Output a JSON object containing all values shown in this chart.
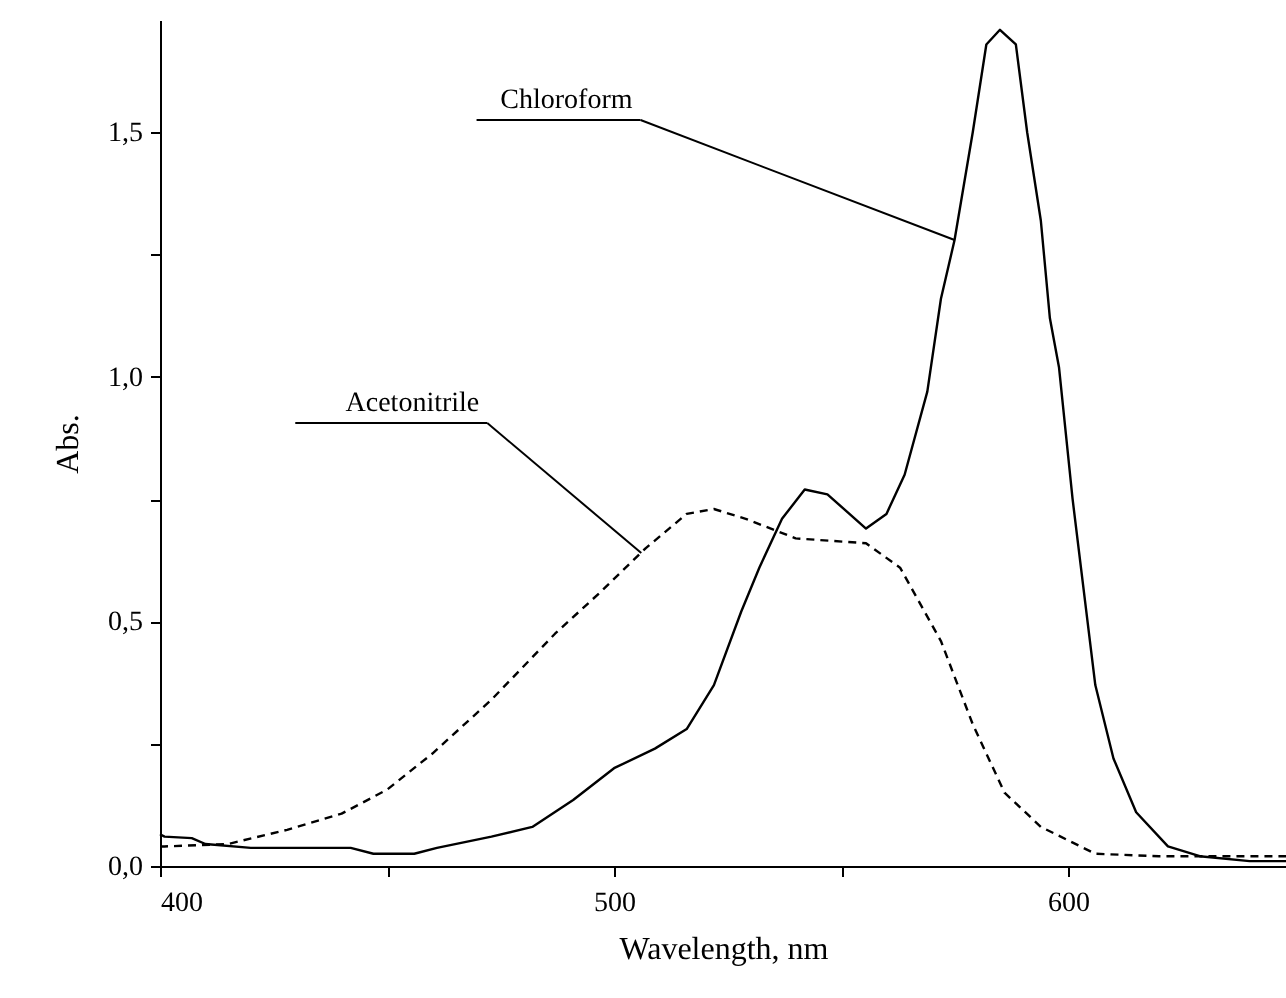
{
  "chart_data": {
    "type": "line",
    "xlabel": "Wavelength, nm",
    "ylabel": "Abs.",
    "xlim": [
      400,
      648
    ],
    "xticks": [
      400,
      {
        "value": 450,
        "label": null
      },
      500,
      {
        "value": 550,
        "label": null
      },
      600
    ],
    "ylim": [
      0,
      1.73
    ],
    "yticks": [
      {
        "value": 0,
        "label": "0,0"
      },
      {
        "value": 0.25,
        "label": null
      },
      {
        "value": 0.5,
        "label": "0,5"
      },
      {
        "value": 0.75,
        "label": null
      },
      {
        "value": 1,
        "label": "1,0"
      },
      {
        "value": 1.25,
        "label": null
      },
      {
        "value": 1.5,
        "label": "1,5"
      }
    ],
    "annotations": [
      {
        "text": "Chloroform",
        "x": 575,
        "y": 1.28
      },
      {
        "text": "Acetonitrile",
        "x": 506,
        "y": 0.64
      }
    ],
    "series": [
      {
        "color": "#000000",
        "line_style": "solid",
        "x": [
          400,
          401,
          407,
          410,
          420,
          442,
          447,
          456,
          461,
          473,
          482,
          491,
          500,
          509,
          516,
          522,
          528,
          532,
          537,
          542,
          547,
          555.5,
          560,
          564,
          569,
          572,
          575,
          579,
          582,
          585,
          588.5,
          591,
          594,
          596,
          598,
          601,
          606,
          610,
          615,
          622,
          629,
          640,
          648
        ],
        "values": [
          0.065,
          0.06,
          0.057,
          0.045,
          0.037,
          0.037,
          0.025,
          0.025,
          0.037,
          0.06,
          0.08,
          0.135,
          0.2,
          0.24,
          0.28,
          0.37,
          0.52,
          0.61,
          0.71,
          0.77,
          0.76,
          0.69,
          0.72,
          0.8,
          0.97,
          1.16,
          1.28,
          1.5,
          1.68,
          1.71,
          1.68,
          1.5,
          1.32,
          1.12,
          1.02,
          0.75,
          0.37,
          0.22,
          0.11,
          0.04,
          0.02,
          0.01,
          0.01
        ]
      },
      {
        "color": "#000000",
        "line_style": "dashed",
        "x": [
          400,
          401,
          415,
          428,
          440,
          450,
          460,
          473,
          487,
          497,
          507,
          516,
          522,
          529,
          540,
          555.5,
          563,
          572,
          579,
          586,
          594,
          606,
          620,
          648
        ],
        "values": [
          0.04,
          0.04,
          0.045,
          0.074,
          0.107,
          0.156,
          0.23,
          0.34,
          0.475,
          0.56,
          0.65,
          0.72,
          0.73,
          0.71,
          0.67,
          0.66,
          0.61,
          0.46,
          0.29,
          0.15,
          0.08,
          0.025,
          0.02,
          0.02
        ]
      }
    ]
  }
}
